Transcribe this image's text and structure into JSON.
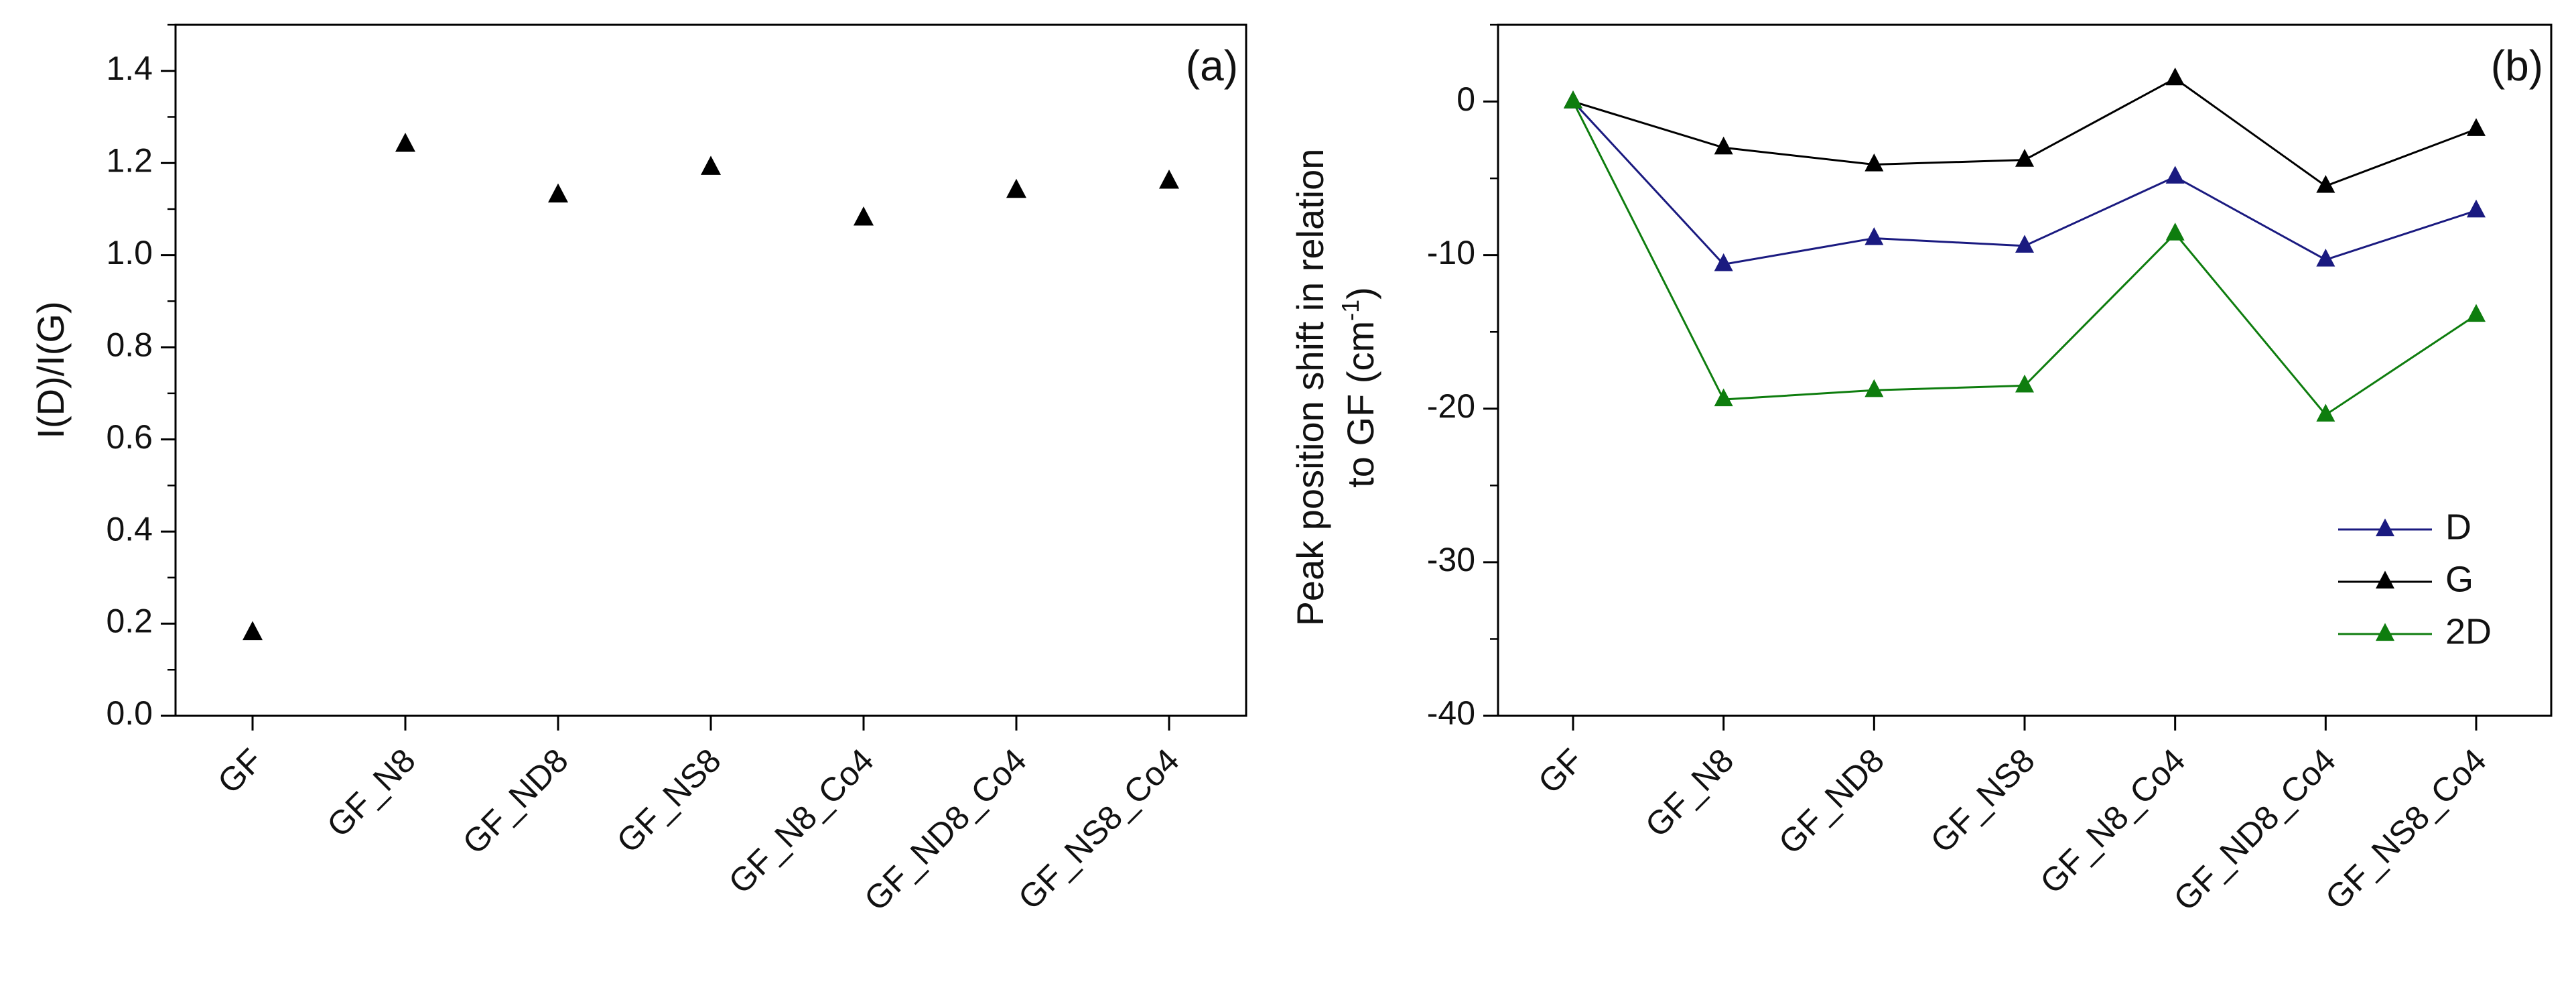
{
  "chart_data": [
    {
      "type": "scatter",
      "panel_label": "(a)",
      "ylabel": "I(D)/I(G)",
      "xlabel": "",
      "categories": [
        "GF",
        "GF_N8",
        "GF_ND8",
        "GF_NS8",
        "GF_N8_Co4",
        "GF_ND8_Co4",
        "GF_NS8_Co4"
      ],
      "series": [
        {
          "name": "I(D)/I(G)",
          "color": "#000000",
          "marker": "triangle",
          "values": [
            0.18,
            1.24,
            1.13,
            1.19,
            1.08,
            1.14,
            1.16
          ]
        }
      ],
      "ylim": [
        0,
        1.5
      ],
      "yticks": [
        0.0,
        0.2,
        0.4,
        0.6,
        0.8,
        1.0,
        1.2,
        1.4
      ],
      "ytick_labels": [
        "0.0",
        "0.2",
        "0.4",
        "0.6",
        "0.8",
        "1.0",
        "1.2",
        "1.4"
      ],
      "grid": false
    },
    {
      "type": "line",
      "panel_label": "(b)",
      "ylabel_line1": "Peak position shift in relation",
      "ylabel_line2_prefix": "to GF (cm",
      "ylabel_line2_sup": "-1",
      "ylabel_line2_suffix": ")",
      "xlabel": "",
      "categories": [
        "GF",
        "GF_N8",
        "GF_ND8",
        "GF_NS8",
        "GF_N8_Co4",
        "GF_ND8_Co4",
        "GF_NS8_Co4"
      ],
      "series": [
        {
          "name": "D",
          "color": "#1a1a80",
          "marker": "triangle",
          "values": [
            0,
            -10.6,
            -8.9,
            -9.4,
            -4.9,
            -10.3,
            -7.1
          ]
        },
        {
          "name": "G",
          "color": "#000000",
          "marker": "triangle",
          "values": [
            0,
            -3.0,
            -4.1,
            -3.8,
            1.5,
            -5.5,
            -1.8
          ]
        },
        {
          "name": "2D",
          "color": "#0e7d0e",
          "marker": "triangle",
          "values": [
            0,
            -19.4,
            -18.8,
            -18.5,
            -8.6,
            -20.4,
            -13.9
          ]
        }
      ],
      "ylim": [
        -40,
        5
      ],
      "yticks": [
        -40,
        -30,
        -20,
        -10,
        0
      ],
      "ytick_labels": [
        "-40",
        "-30",
        "-20",
        "-10",
        "0"
      ],
      "legend_position": "bottom-right",
      "grid": false
    }
  ]
}
